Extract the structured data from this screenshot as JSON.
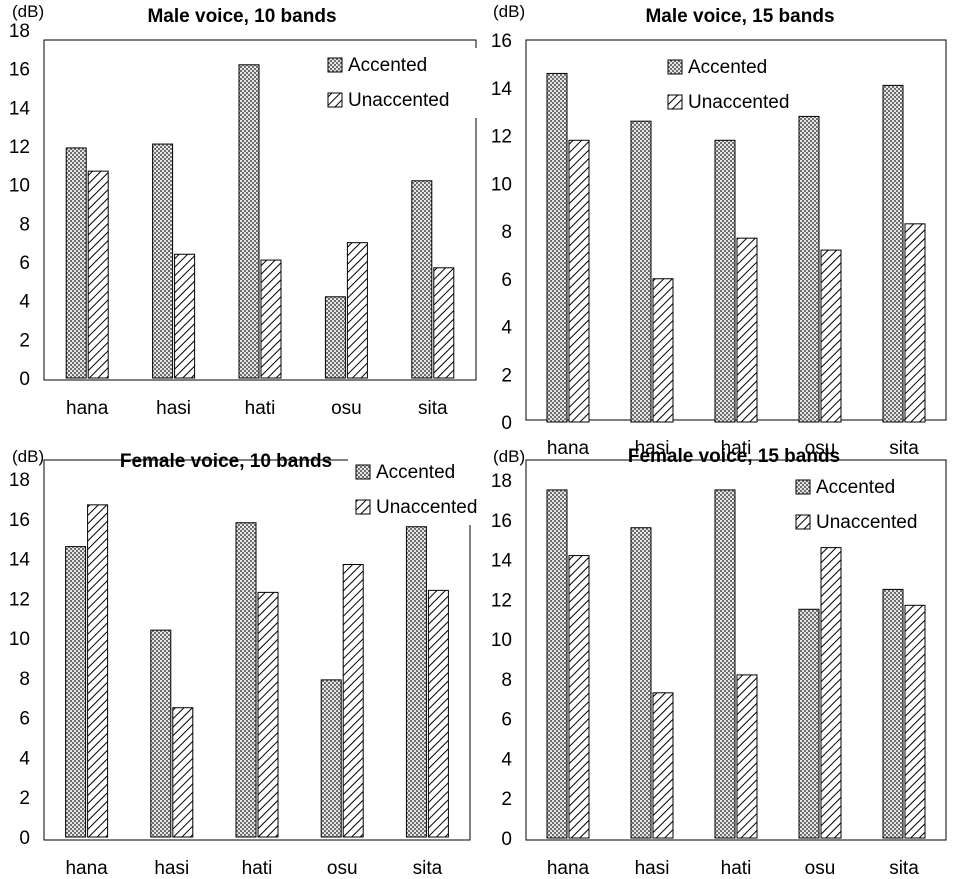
{
  "figure": {
    "series_names": [
      "Accented",
      "Unaccented"
    ],
    "colors": {
      "bar_stroke": "#000000",
      "accented_base": "#6f6f6f",
      "unaccented_base": "#ffffff",
      "frame": "#000000"
    }
  },
  "chart_data": [
    {
      "type": "bar",
      "title": "Male voice, 10 bands",
      "unit_label": "(dB)",
      "categories": [
        "hana",
        "hasi",
        "hati",
        "osu",
        "sita"
      ],
      "ylim": [
        0,
        18
      ],
      "yticks": [
        "0",
        "2",
        "4",
        "6",
        "8",
        "10",
        "12",
        "14",
        "16",
        "18"
      ],
      "legend": {
        "placement": "top-right",
        "items": [
          "Accented",
          "Unaccented"
        ]
      },
      "series": [
        {
          "name": "Accented",
          "values": [
            11.9,
            12.1,
            16.2,
            4.2,
            10.2
          ]
        },
        {
          "name": "Unaccented",
          "values": [
            10.7,
            6.4,
            6.1,
            7.0,
            5.7
          ]
        }
      ]
    },
    {
      "type": "bar",
      "title": "Male voice, 15 bands",
      "unit_label": "(dB)",
      "categories": [
        "hana",
        "hasi",
        "hati",
        "osu",
        "sita"
      ],
      "ylim": [
        0,
        16
      ],
      "yticks": [
        "0",
        "2",
        "4",
        "6",
        "8",
        "10",
        "12",
        "14",
        "16"
      ],
      "legend": {
        "placement": "top-right",
        "items": [
          "Accented",
          "Unaccented"
        ]
      },
      "series": [
        {
          "name": "Accented",
          "values": [
            14.6,
            12.6,
            11.8,
            12.8,
            14.1
          ]
        },
        {
          "name": "Unaccented",
          "values": [
            11.8,
            6.0,
            7.7,
            7.2,
            8.3
          ]
        }
      ]
    },
    {
      "type": "bar",
      "title": "Female voice, 10 bands",
      "unit_label": "(dB)",
      "categories": [
        "hana",
        "hasi",
        "hati",
        "osu",
        "sita"
      ],
      "ylim": [
        0,
        18
      ],
      "yticks": [
        "0",
        "2",
        "4",
        "6",
        "8",
        "10",
        "12",
        "14",
        "16",
        "18"
      ],
      "legend": {
        "placement": "top-right",
        "items": [
          "Accented",
          "Unaccented"
        ]
      },
      "series": [
        {
          "name": "Accented",
          "values": [
            14.6,
            10.4,
            15.8,
            7.9,
            15.6
          ]
        },
        {
          "name": "Unaccented",
          "values": [
            16.7,
            6.5,
            12.3,
            13.7,
            12.4
          ]
        }
      ]
    },
    {
      "type": "bar",
      "title": "Female voice, 15 bands",
      "unit_label": "(dB)",
      "categories": [
        "hana",
        "hasi",
        "hati",
        "osu",
        "sita"
      ],
      "ylim": [
        0,
        18
      ],
      "yticks": [
        "0",
        "2",
        "4",
        "6",
        "8",
        "10",
        "12",
        "14",
        "16",
        "18"
      ],
      "legend": {
        "placement": "top-right",
        "items": [
          "Accented",
          "Unaccented"
        ]
      },
      "series": [
        {
          "name": "Accented",
          "values": [
            17.5,
            15.6,
            17.5,
            11.5,
            12.5
          ]
        },
        {
          "name": "Unaccented",
          "values": [
            14.2,
            7.3,
            8.2,
            14.6,
            11.7
          ]
        }
      ]
    }
  ]
}
